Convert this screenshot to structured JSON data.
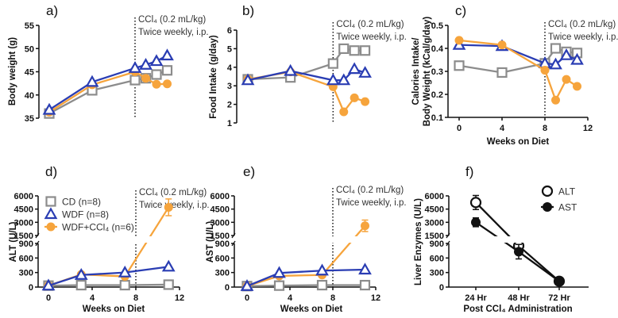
{
  "colors": {
    "CD": "#8c8c8c",
    "WDF": "#2a3db3",
    "WDF+CCl4": "#f6a43c",
    "enzyme": "#111111"
  },
  "annotation": {
    "line1": "CCl₄ (0.2 mL/kg)",
    "line2": "Twice weekly, i.p."
  },
  "chart_data": [
    {
      "panel": "a)",
      "type": "line",
      "ylabel": [
        "Body weight (g)"
      ],
      "xlabel": "",
      "ylim": [
        35,
        55
      ],
      "yticks": [
        35,
        40,
        45,
        50,
        55
      ],
      "xlim": [
        0,
        12
      ],
      "xticks": [],
      "annotation_week": 8,
      "x": [
        0,
        4,
        8,
        9,
        10,
        11
      ],
      "series": [
        {
          "key": "CD",
          "marker": "square",
          "values": [
            36.0,
            41.0,
            43.2,
            43.6,
            44.4,
            45.3
          ]
        },
        {
          "key": "WDF+CCl4",
          "marker": "circle",
          "values": [
            36.3,
            42.2,
            45.0,
            43.6,
            42.3,
            42.4
          ]
        },
        {
          "key": "WDF",
          "marker": "triangle",
          "values": [
            36.8,
            42.8,
            45.8,
            46.5,
            47.3,
            48.5
          ]
        }
      ]
    },
    {
      "panel": "b)",
      "type": "line",
      "ylabel": [
        "Food Intake (g/day)"
      ],
      "xlabel": "",
      "ylim": [
        1,
        6
      ],
      "yticks": [
        1,
        2,
        3,
        4,
        5,
        6
      ],
      "xlim": [
        0,
        12
      ],
      "xticks": [],
      "annotation_week": 8,
      "x": [
        0,
        4,
        8,
        9,
        10,
        11
      ],
      "series": [
        {
          "key": "CD",
          "marker": "square",
          "values": [
            3.35,
            3.45,
            4.2,
            5.0,
            4.9,
            4.9
          ]
        },
        {
          "key": "WDF+CCl4",
          "marker": "circle",
          "values": [
            3.35,
            3.75,
            2.95,
            1.6,
            2.35,
            2.15
          ]
        },
        {
          "key": "WDF",
          "marker": "triangle",
          "values": [
            3.3,
            3.8,
            3.3,
            3.3,
            3.9,
            3.7
          ]
        }
      ]
    },
    {
      "panel": "c)",
      "type": "line",
      "ylabel": [
        "Calories Intake/",
        "Body Weight (kCal/g/day)"
      ],
      "xlabel": "Weeks on Diet",
      "ylim": [
        0.1,
        0.5
      ],
      "yticks": [
        0.1,
        0.2,
        0.3,
        0.4,
        0.5
      ],
      "xlim": [
        0,
        12
      ],
      "xticks": [
        0,
        4,
        8,
        12
      ],
      "annotation_week": 8,
      "x": [
        0,
        4,
        8,
        9,
        10,
        11
      ],
      "series": [
        {
          "key": "CD",
          "marker": "square",
          "values": [
            0.325,
            0.295,
            0.335,
            0.4,
            0.385,
            0.38
          ]
        },
        {
          "key": "WDF",
          "marker": "triangle",
          "values": [
            0.415,
            0.41,
            0.335,
            0.33,
            0.37,
            0.35
          ]
        },
        {
          "key": "WDF+CCl4",
          "marker": "circle",
          "values": [
            0.435,
            0.415,
            0.305,
            0.175,
            0.265,
            0.235
          ]
        }
      ]
    },
    {
      "panel": "d)",
      "type": "line",
      "ylabel": [
        "ALT (U/L)"
      ],
      "xlabel": "Weeks on Diet",
      "broken_y": {
        "lower": [
          0,
          900
        ],
        "upper": [
          1500,
          6000
        ]
      },
      "yticks_lower": [
        0,
        300,
        600,
        900
      ],
      "yticks_upper": [
        1500,
        3000,
        4500,
        6000
      ],
      "xlim": [
        0,
        12
      ],
      "xticks": [
        0,
        4,
        8,
        12
      ],
      "annotation_week": 8,
      "x": [
        0,
        3,
        7,
        11
      ],
      "legend": [
        {
          "key": "CD",
          "marker": "square",
          "label": "CD (n=8)"
        },
        {
          "key": "WDF",
          "marker": "triangle",
          "label": "WDF (n=8)"
        },
        {
          "key": "WDF+CCl4",
          "marker": "circle",
          "label": "WDF+CCl₄ (n=6)"
        }
      ],
      "series": [
        {
          "key": "CD",
          "marker": "square",
          "values": [
            30,
            40,
            40,
            50
          ]
        },
        {
          "key": "WDF+CCl4",
          "marker": "circle",
          "values": [
            30,
            260,
            220,
            4700
          ],
          "error": [
            0,
            0,
            0,
            950
          ]
        },
        {
          "key": "WDF",
          "marker": "triangle",
          "values": [
            30,
            250,
            300,
            420
          ]
        }
      ]
    },
    {
      "panel": "e)",
      "type": "line",
      "ylabel": [
        "AST (U/L)"
      ],
      "xlabel": "Weeks on Diet",
      "broken_y": {
        "lower": [
          0,
          900
        ],
        "upper": [
          1500,
          6000
        ]
      },
      "yticks_lower": [
        0,
        300,
        600,
        900
      ],
      "yticks_upper": [
        1500,
        3000,
        4500,
        6000
      ],
      "xlim": [
        0,
        12
      ],
      "xticks": [
        0,
        4,
        8,
        12
      ],
      "annotation_week": 8,
      "x": [
        0,
        3,
        7,
        11
      ],
      "series": [
        {
          "key": "CD",
          "marker": "square",
          "values": [
            20,
            30,
            40,
            40
          ]
        },
        {
          "key": "WDF+CCl4",
          "marker": "circle",
          "values": [
            20,
            230,
            250,
            2600
          ],
          "error": [
            0,
            0,
            0,
            650
          ]
        },
        {
          "key": "WDF",
          "marker": "triangle",
          "values": [
            20,
            290,
            340,
            360
          ]
        }
      ]
    },
    {
      "panel": "f)",
      "type": "line",
      "ylabel": [
        "Liver Enzymes (U/L)"
      ],
      "xlabel": "Post CCl₄ Administration",
      "broken_y": {
        "lower": [
          0,
          900
        ],
        "upper": [
          1500,
          6000
        ]
      },
      "yticks_lower": [
        0,
        300,
        600,
        900
      ],
      "yticks_upper": [
        1500,
        3000,
        4500,
        6000
      ],
      "categories": [
        "24 Hr",
        "48 Hr",
        "72 Hr"
      ],
      "legend": [
        {
          "key": "ALT",
          "marker": "open-circle",
          "label": "ALT"
        },
        {
          "key": "AST",
          "marker": "filled-circle",
          "label": "AST"
        }
      ],
      "series": [
        {
          "key": "ALT",
          "marker": "open-circle",
          "values": [
            5250,
            850,
            120
          ],
          "error": [
            800,
            60,
            20
          ]
        },
        {
          "key": "AST",
          "marker": "filled-circle",
          "values": [
            3000,
            730,
            120
          ],
          "error": [
            500,
            150,
            20
          ]
        }
      ]
    }
  ]
}
